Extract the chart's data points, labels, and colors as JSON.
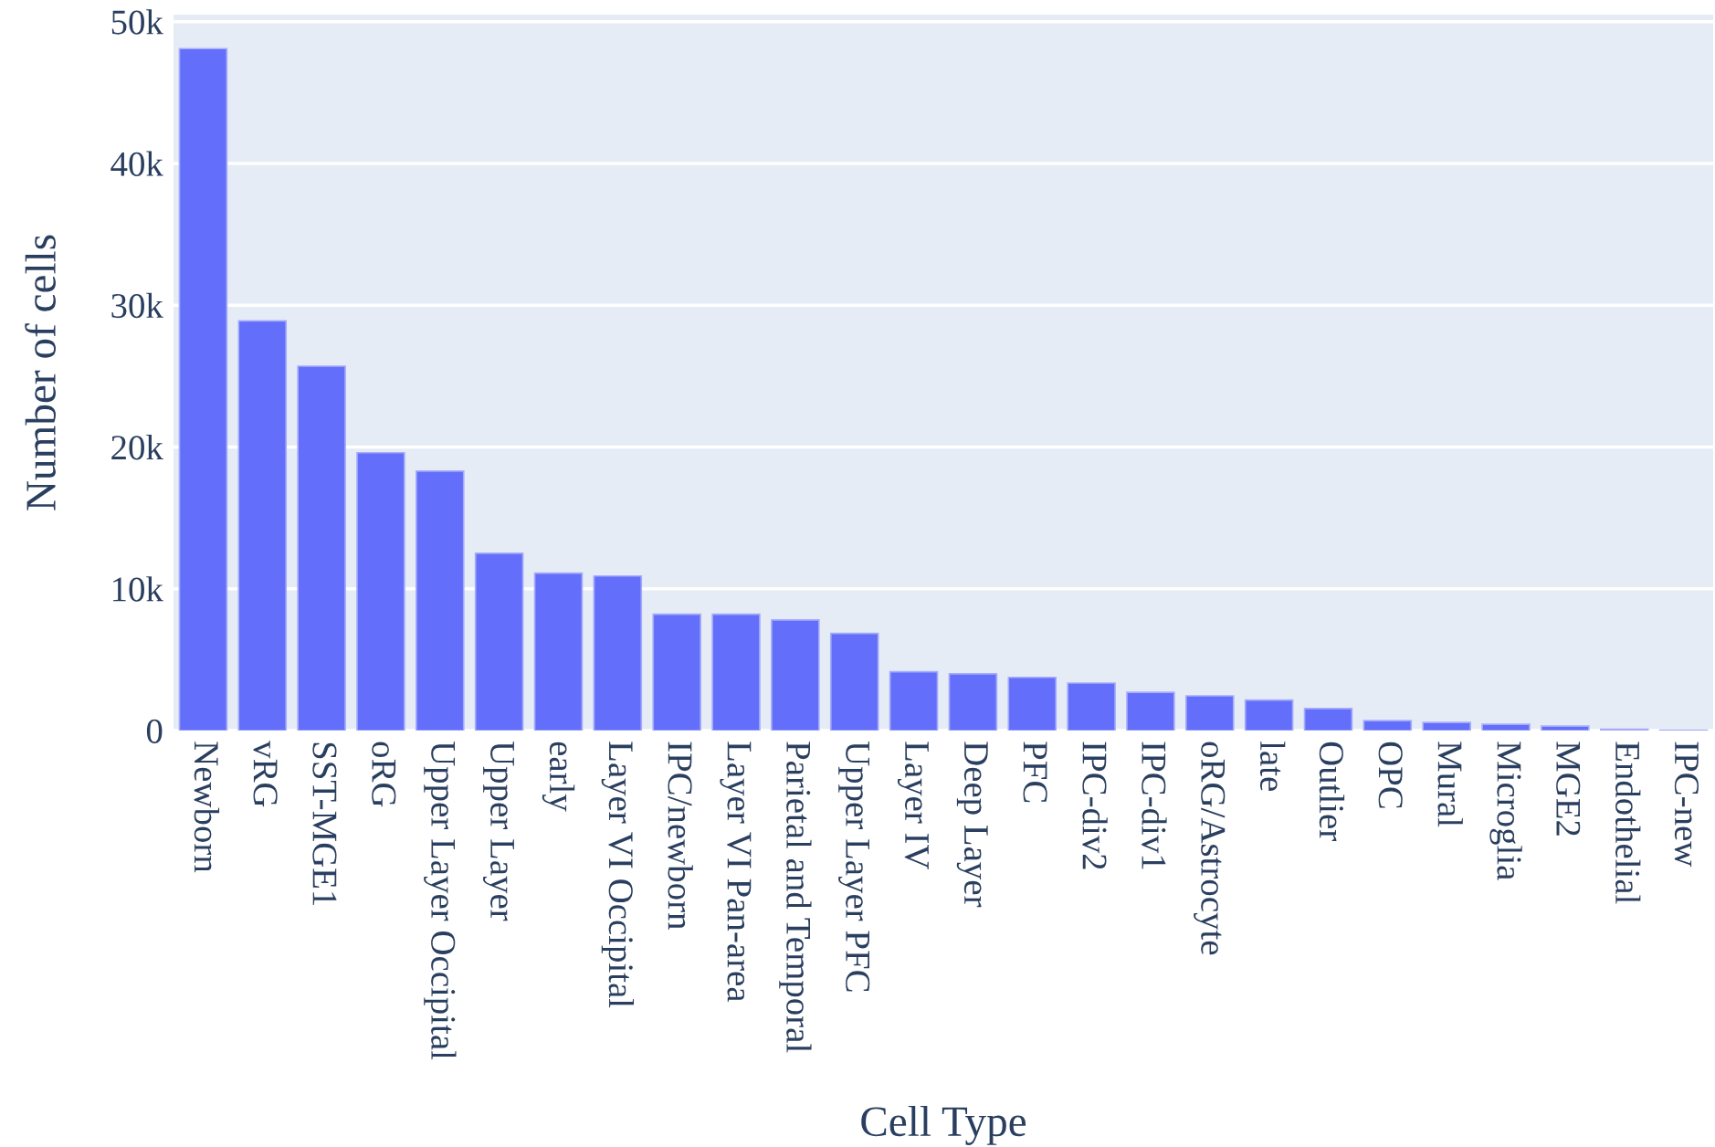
{
  "chart_data": {
    "type": "bar",
    "xlabel": "Cell Type",
    "ylabel": "Number of cells",
    "categories": [
      "Newborn",
      "vRG",
      "SST-MGE1",
      "oRG",
      "Upper Layer Occipital",
      "Upper Layer",
      "early",
      "Layer VI Occipital",
      "IPC/newborn",
      "Layer VI Pan-area",
      "Parietal and Temporal",
      "Upper Layer PFC",
      "Layer IV",
      "Deep Layer",
      "PFC",
      "IPC-div2",
      "IPC-div1",
      "oRG/Astrocyte",
      "late",
      "Outlier",
      "OPC",
      "Mural",
      "Microglia",
      "MGE2",
      "Endothelial",
      "IPC-new"
    ],
    "values": [
      48100,
      28900,
      25700,
      19600,
      18300,
      12500,
      11100,
      10900,
      8200,
      8200,
      7800,
      6850,
      4150,
      4000,
      3750,
      3350,
      2700,
      2450,
      2150,
      1550,
      700,
      570,
      440,
      310,
      90,
      20
    ],
    "color": "#636efa",
    "ylim": [
      0,
      50500
    ],
    "yticks": [
      {
        "value": 0,
        "label": "0"
      },
      {
        "value": 10000,
        "label": "10k"
      },
      {
        "value": 20000,
        "label": "20k"
      },
      {
        "value": 30000,
        "label": "30k"
      },
      {
        "value": 40000,
        "label": "40k"
      },
      {
        "value": 50000,
        "label": "50k"
      }
    ],
    "grid": "y"
  }
}
